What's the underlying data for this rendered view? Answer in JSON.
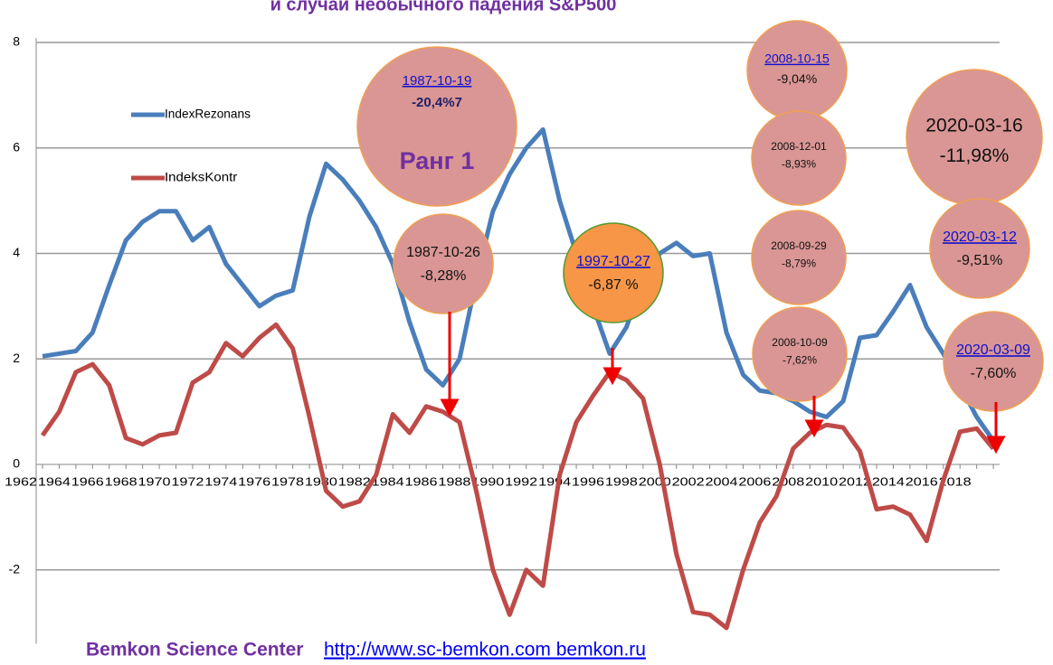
{
  "chart_data": {
    "type": "line",
    "title": "и случаи необычного падения S&P500",
    "categories": [
      "1962",
      null,
      "1964",
      null,
      "1966",
      null,
      "1968",
      null,
      "1970",
      null,
      "1972",
      null,
      "1974",
      null,
      "1976",
      null,
      "1978",
      null,
      "1980",
      null,
      "1982",
      null,
      "1984",
      null,
      "1986",
      null,
      "1988",
      null,
      "1990",
      null,
      "1992",
      null,
      "1994",
      null,
      "1996",
      null,
      "1998",
      null,
      "2000",
      null,
      "2002",
      null,
      "2004",
      null,
      "2006",
      null,
      "2008",
      null,
      "2010",
      null,
      "2012",
      null,
      "2014",
      null,
      "2016",
      null,
      "2018",
      null
    ],
    "series": [
      {
        "name": "IndexRezonans",
        "color": "#4a7ebb",
        "values": [
          2.05,
          2.1,
          2.15,
          2.5,
          3.4,
          4.25,
          4.6,
          4.8,
          4.8,
          4.25,
          4.5,
          3.8,
          3.4,
          3.0,
          3.2,
          3.3,
          4.7,
          5.7,
          5.4,
          5.0,
          4.5,
          3.8,
          2.7,
          1.8,
          1.5,
          2.0,
          3.5,
          4.8,
          5.5,
          6.0,
          6.35,
          5.0,
          4.0,
          3.0,
          2.1,
          2.6,
          3.5,
          4.0,
          4.2,
          3.95,
          4.0,
          2.5,
          1.7,
          1.4,
          1.35,
          1.2,
          1.0,
          0.9,
          1.2,
          2.4,
          2.45,
          2.9,
          3.4,
          2.6,
          2.1,
          1.5,
          0.9,
          0.45
        ]
      },
      {
        "name": "IndeksKontr",
        "color": "#be4b48",
        "values": [
          0.55,
          1.0,
          1.75,
          1.9,
          1.5,
          0.5,
          0.38,
          0.55,
          0.6,
          1.55,
          1.75,
          2.3,
          2.05,
          2.4,
          2.65,
          2.2,
          0.9,
          -0.5,
          -0.8,
          -0.7,
          -0.2,
          0.95,
          0.6,
          1.1,
          1.0,
          0.8,
          -0.5,
          -2.0,
          -2.85,
          -2.0,
          -2.3,
          -0.2,
          0.8,
          1.3,
          1.75,
          1.6,
          1.25,
          0.0,
          -1.7,
          -2.8,
          -2.85,
          -3.1,
          -2.0,
          -1.1,
          -0.6,
          0.3,
          0.6,
          0.75,
          0.7,
          0.25,
          -0.85,
          -0.8,
          -0.95,
          -1.45,
          -0.3,
          0.62,
          0.68,
          0.3
        ]
      }
    ],
    "ylim": [
      -3.4,
      8
    ],
    "yticks": [
      -2,
      0,
      2,
      4,
      6,
      8
    ],
    "grid": true,
    "annotations": [
      {
        "date": "1987-10-19",
        "text": "-20,4%7",
        "rank": "Ранг 1"
      },
      {
        "date": "1987-10-26",
        "text": "-8,28%"
      },
      {
        "date": "1997-10-27",
        "text": "-6,87 %"
      },
      {
        "date": "2008-10-15",
        "text": "-9,04%"
      },
      {
        "date": "2008-12-01",
        "text": "-8,93%"
      },
      {
        "date": "2008-09-29",
        "text": "-8,79%"
      },
      {
        "date": "2008-10-09",
        "text": "-7,62%"
      },
      {
        "date": "2020-03-16",
        "text": "-11,98%"
      },
      {
        "date": "2020-03-12",
        "text": "-9,51%"
      },
      {
        "date": "2020-03-09",
        "text": "-7,60%"
      }
    ]
  },
  "footer": {
    "org": "Bemkon Science Center",
    "link": "http://www.sc-bemkon.com  bemkon.ru"
  }
}
